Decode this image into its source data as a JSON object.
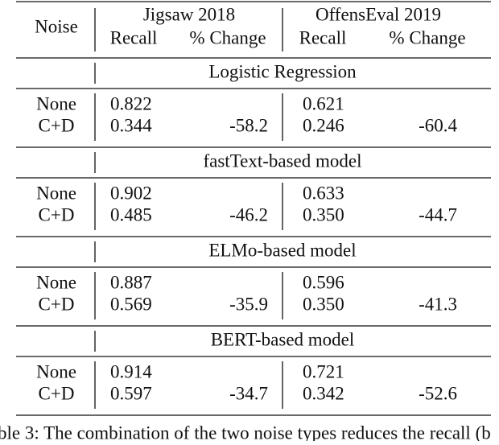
{
  "header": {
    "noise": "Noise",
    "groups": [
      "Jigsaw 2018",
      "OffensEval 2019"
    ],
    "columns": [
      "Recall",
      "% Change",
      "Recall",
      "% Change"
    ]
  },
  "sections": [
    {
      "title": "Logistic Regression",
      "rows": [
        {
          "noise": "None",
          "jigsaw_recall": "0.822",
          "offenseval_recall": "0.621"
        },
        {
          "noise": "C+D",
          "jigsaw_recall": "0.344",
          "jigsaw_change": "-58.2",
          "offenseval_recall": "0.246",
          "offenseval_change": "-60.4"
        }
      ]
    },
    {
      "title": "fastText-based model",
      "rows": [
        {
          "noise": "None",
          "jigsaw_recall": "0.902",
          "offenseval_recall": "0.633"
        },
        {
          "noise": "C+D",
          "jigsaw_recall": "0.485",
          "jigsaw_change": "-46.2",
          "offenseval_recall": "0.350",
          "offenseval_change": "-44.7"
        }
      ]
    },
    {
      "title": "ELMo-based model",
      "rows": [
        {
          "noise": "None",
          "jigsaw_recall": "0.887",
          "offenseval_recall": "0.596"
        },
        {
          "noise": "C+D",
          "jigsaw_recall": "0.569",
          "jigsaw_change": "-35.9",
          "offenseval_recall": "0.350",
          "offenseval_change": "-41.3"
        }
      ]
    },
    {
      "title": "BERT-based model",
      "rows": [
        {
          "noise": "None",
          "jigsaw_recall": "0.914",
          "offenseval_recall": "0.721"
        },
        {
          "noise": "C+D",
          "jigsaw_recall": "0.597",
          "jigsaw_change": "-34.7",
          "offenseval_recall": "0.342",
          "offenseval_change": "-52.6"
        }
      ]
    }
  ],
  "caption": "ble 3: The combination of the two noise types reduces the recall (b"
}
